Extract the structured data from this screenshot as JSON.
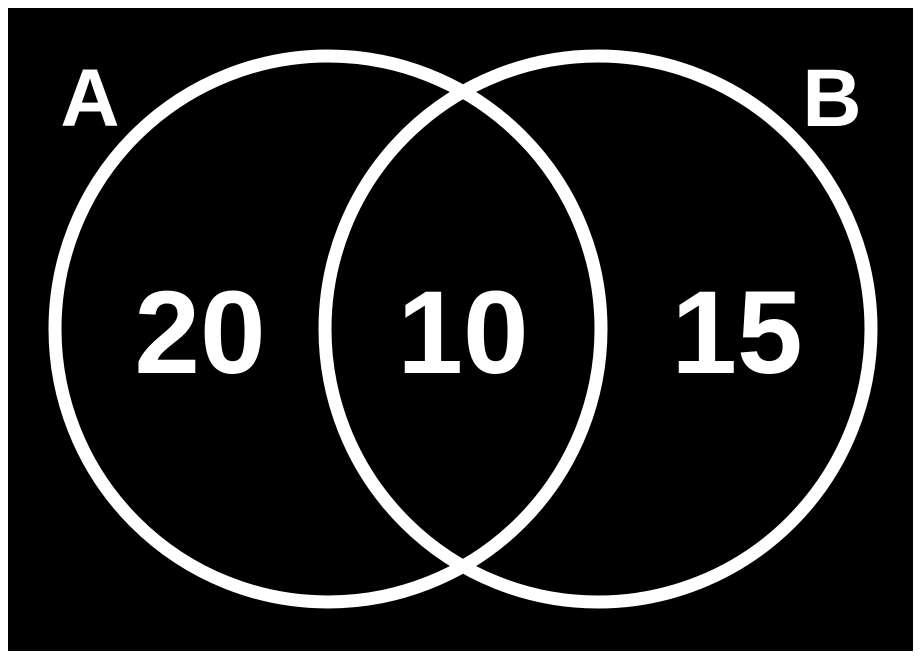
{
  "diagram": {
    "type": "venn",
    "background_color": "#000000",
    "line_color": "#ffffff",
    "text_color": "#ffffff",
    "sets": [
      {
        "label": "A"
      },
      {
        "label": "B"
      }
    ],
    "regions": {
      "a_only": "20",
      "a_and_b": "10",
      "b_only": "15"
    }
  }
}
